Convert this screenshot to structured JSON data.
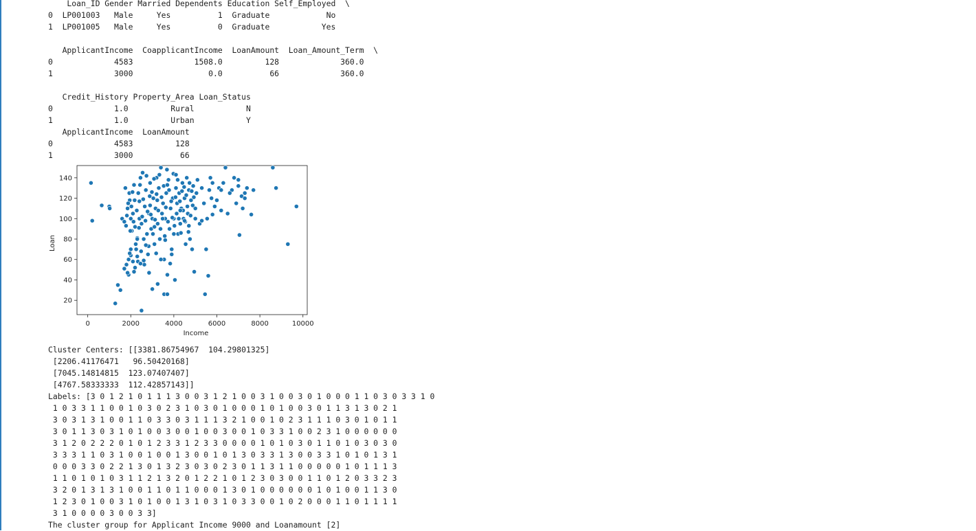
{
  "output": {
    "df_head_text": "    Loan_ID Gender Married Dependents Education Self_Employed  \\\n0  LP001003   Male     Yes          1  Graduate            No\n1  LP001005   Male     Yes          0  Graduate           Yes\n\n   ApplicantIncome  CoapplicantIncome  LoanAmount  Loan_Amount_Term  \\\n0             4583             1508.0         128             360.0\n1             3000                0.0          66             360.0\n\n   Credit_History Property_Area Loan_Status\n0             1.0         Rural           N\n1             1.0         Urban           Y\n   ApplicantIncome  LoanAmount\n0             4583         128\n1             3000          66",
    "cluster_text": "Cluster Centers: [[3381.86754967  104.29801325]\n [2206.41176471   96.50420168]\n [7045.14814815  123.07407407]\n [4767.58333333  112.42857143]]\nLabels: [3 0 1 2 1 0 1 1 1 3 0 0 3 1 2 1 0 0 3 1 0 0 3 0 1 0 0 0 1 1 0 3 0 3 3 1 0\n 1 0 3 3 1 1 0 0 1 0 3 0 2 3 1 0 3 0 1 0 0 0 1 0 1 0 0 3 0 1 1 3 1 3 0 2 1\n 3 0 3 1 3 1 0 0 1 1 0 3 3 0 3 1 1 1 3 2 1 0 0 1 0 2 3 1 1 1 0 3 0 1 0 1 1\n 3 0 1 1 3 0 3 1 0 1 0 0 3 0 0 1 0 0 3 0 0 1 0 3 3 1 0 0 2 3 1 0 0 0 0 0 0\n 3 1 2 0 2 2 2 0 1 0 1 2 3 3 1 2 3 3 0 0 0 0 1 0 1 0 3 0 1 1 0 1 0 3 0 3 0\n 3 3 3 1 1 0 3 1 0 0 1 0 0 1 3 0 0 1 0 1 3 0 3 3 1 3 0 0 3 3 1 0 1 0 1 3 1\n 0 0 0 3 3 0 2 2 1 3 0 1 3 2 3 0 3 0 2 3 0 1 1 3 1 1 0 0 0 0 0 1 0 1 1 1 3\n 1 1 0 1 0 1 0 3 1 1 2 1 3 2 0 1 2 2 1 0 1 2 3 0 3 0 0 1 1 0 1 2 0 3 3 2 3\n 3 2 0 1 3 1 3 1 0 0 1 1 0 1 1 0 0 0 1 3 0 1 0 0 0 0 0 0 1 0 1 0 0 1 1 3 0\n 1 2 3 0 1 0 0 3 1 0 1 0 0 1 3 1 0 3 1 0 3 3 0 0 1 0 2 0 0 0 1 1 0 1 1 1 1\n 3 1 0 0 0 0 3 0 0 3 3]\nThe cluster group for Applicant Income 9000 and Loanamount [2]"
  },
  "colors": {
    "point": "#1f77b4",
    "sidebar_accent": "#2f7ebd"
  },
  "chart_data": {
    "type": "scatter",
    "title": "",
    "xlabel": "Income",
    "ylabel": "Loan",
    "xlim": [
      -500,
      10200
    ],
    "ylim": [
      6,
      152
    ],
    "xticks": [
      0,
      2000,
      4000,
      6000,
      8000,
      10000
    ],
    "yticks": [
      20,
      40,
      60,
      80,
      100,
      120,
      140
    ],
    "xtick_labels": [
      "0",
      "2000",
      "4000",
      "6000",
      "8000",
      "10000"
    ],
    "ytick_labels": [
      "20",
      "40",
      "60",
      "80",
      "100",
      "120",
      "140"
    ],
    "grid": false,
    "points": [
      [
        150,
        135
      ],
      [
        210,
        98
      ],
      [
        650,
        113
      ],
      [
        1000,
        112
      ],
      [
        1020,
        110
      ],
      [
        1280,
        17
      ],
      [
        1400,
        35
      ],
      [
        1520,
        30
      ],
      [
        1600,
        100
      ],
      [
        1700,
        97
      ],
      [
        1750,
        130
      ],
      [
        1800,
        55
      ],
      [
        1850,
        110
      ],
      [
        1900,
        45
      ],
      [
        1950,
        118
      ],
      [
        2000,
        100
      ],
      [
        2100,
        105
      ],
      [
        2050,
        88
      ],
      [
        2150,
        133
      ],
      [
        2200,
        92
      ],
      [
        2250,
        70
      ],
      [
        2300,
        63
      ],
      [
        2350,
        125
      ],
      [
        2400,
        100
      ],
      [
        2450,
        140
      ],
      [
        2500,
        95
      ],
      [
        2550,
        145
      ],
      [
        2600,
        80
      ],
      [
        2650,
        112
      ],
      [
        2700,
        128
      ],
      [
        2750,
        85
      ],
      [
        2800,
        65
      ],
      [
        2850,
        105
      ],
      [
        2900,
        135
      ],
      [
        2950,
        90
      ],
      [
        3000,
        100
      ],
      [
        3050,
        120
      ],
      [
        3100,
        75
      ],
      [
        3150,
        110
      ],
      [
        3200,
        140
      ],
      [
        3250,
        95
      ],
      [
        3300,
        130
      ],
      [
        3350,
        80
      ],
      [
        3400,
        150
      ],
      [
        3450,
        105
      ],
      [
        3500,
        115
      ],
      [
        3550,
        60
      ],
      [
        3600,
        100
      ],
      [
        3650,
        125
      ],
      [
        3700,
        45
      ],
      [
        3750,
        138
      ],
      [
        3800,
        90
      ],
      [
        3850,
        110
      ],
      [
        3900,
        70
      ],
      [
        3950,
        120
      ],
      [
        4000,
        100
      ],
      [
        4050,
        40
      ],
      [
        4100,
        130
      ],
      [
        4150,
        115
      ],
      [
        4200,
        85
      ],
      [
        4250,
        125
      ],
      [
        4300,
        95
      ],
      [
        4350,
        110
      ],
      [
        4400,
        135
      ],
      [
        4450,
        100
      ],
      [
        4500,
        120
      ],
      [
        4550,
        75
      ],
      [
        4600,
        140
      ],
      [
        4650,
        105
      ],
      [
        4700,
        128
      ],
      [
        4750,
        80
      ],
      [
        4800,
        118
      ],
      [
        4850,
        70
      ],
      [
        4900,
        132
      ],
      [
        4950,
        48
      ],
      [
        5000,
        110
      ],
      [
        5050,
        125
      ],
      [
        5100,
        138
      ],
      [
        5200,
        95
      ],
      [
        5300,
        130
      ],
      [
        5400,
        115
      ],
      [
        5450,
        26
      ],
      [
        5500,
        70
      ],
      [
        5550,
        100
      ],
      [
        5600,
        44
      ],
      [
        5650,
        128
      ],
      [
        5700,
        140
      ],
      [
        5750,
        120
      ],
      [
        5800,
        135
      ],
      [
        5900,
        112
      ],
      [
        6000,
        118
      ],
      [
        6100,
        130
      ],
      [
        6200,
        108
      ],
      [
        6300,
        135
      ],
      [
        6400,
        150
      ],
      [
        6500,
        105
      ],
      [
        6700,
        128
      ],
      [
        6800,
        140
      ],
      [
        6900,
        115
      ],
      [
        7000,
        138
      ],
      [
        7050,
        84
      ],
      [
        7150,
        122
      ],
      [
        7200,
        110
      ],
      [
        7300,
        120
      ],
      [
        7400,
        130
      ],
      [
        7600,
        104
      ],
      [
        7700,
        128
      ],
      [
        8600,
        150
      ],
      [
        8750,
        130
      ],
      [
        9300,
        75
      ],
      [
        9700,
        112
      ],
      [
        1780,
        93
      ],
      [
        1820,
        103
      ],
      [
        1880,
        115
      ],
      [
        1930,
        125
      ],
      [
        1980,
        88
      ],
      [
        2030,
        112
      ],
      [
        2080,
        126
      ],
      [
        2130,
        97
      ],
      [
        2180,
        118
      ],
      [
        2230,
        75
      ],
      [
        2280,
        108
      ],
      [
        2330,
        58
      ],
      [
        2380,
        91
      ],
      [
        2430,
        133
      ],
      [
        2480,
        68
      ],
      [
        2530,
        102
      ],
      [
        2580,
        119
      ],
      [
        2630,
        55
      ],
      [
        2680,
        98
      ],
      [
        2730,
        142
      ],
      [
        2780,
        107
      ],
      [
        2830,
        73
      ],
      [
        2880,
        122
      ],
      [
        2930,
        104
      ],
      [
        2980,
        126
      ],
      [
        3030,
        85
      ],
      [
        3080,
        139
      ],
      [
        3130,
        99
      ],
      [
        3180,
        66
      ],
      [
        3230,
        118
      ],
      [
        3280,
        108
      ],
      [
        3330,
        143
      ],
      [
        3380,
        90
      ],
      [
        3430,
        121
      ],
      [
        3480,
        100
      ],
      [
        3530,
        132
      ],
      [
        3580,
        83
      ],
      [
        3630,
        111
      ],
      [
        3680,
        148
      ],
      [
        3730,
        97
      ],
      [
        3780,
        128
      ],
      [
        3830,
        56
      ],
      [
        3880,
        117
      ],
      [
        3930,
        101
      ],
      [
        3980,
        144
      ],
      [
        4030,
        93
      ],
      [
        4080,
        121
      ],
      [
        4130,
        105
      ],
      [
        4180,
        138
      ],
      [
        4230,
        100
      ],
      [
        4280,
        117
      ],
      [
        4330,
        86
      ],
      [
        4380,
        127
      ],
      [
        4430,
        108
      ],
      [
        4480,
        131
      ],
      [
        4530,
        97
      ],
      [
        4580,
        123
      ],
      [
        4630,
        112
      ],
      [
        4680,
        87
      ],
      [
        4730,
        135
      ],
      [
        4780,
        103
      ],
      [
        4830,
        127
      ],
      [
        4880,
        113
      ],
      [
        4930,
        121
      ],
      [
        2500,
        10
      ],
      [
        3550,
        26
      ],
      [
        3700,
        26
      ],
      [
        2850,
        47
      ],
      [
        3250,
        36
      ],
      [
        3000,
        31
      ],
      [
        2200,
        52
      ],
      [
        2600,
        59
      ],
      [
        3900,
        65
      ],
      [
        3400,
        60
      ],
      [
        2300,
        81
      ],
      [
        2700,
        74
      ],
      [
        3100,
        92
      ],
      [
        3600,
        79
      ],
      [
        2000,
        70
      ],
      [
        2100,
        58
      ],
      [
        2400,
        117
      ],
      [
        2900,
        113
      ],
      [
        3200,
        124
      ],
      [
        3700,
        133
      ],
      [
        4100,
        143
      ],
      [
        4500,
        98
      ],
      [
        4700,
        93
      ],
      [
        5000,
        100
      ],
      [
        5300,
        98
      ],
      [
        5800,
        104
      ],
      [
        6200,
        128
      ],
      [
        6600,
        125
      ],
      [
        7000,
        132
      ],
      [
        7300,
        125
      ],
      [
        4000,
        85
      ],
      [
        4300,
        108
      ],
      [
        1700,
        51
      ],
      [
        1850,
        47
      ],
      [
        2000,
        64
      ],
      [
        1950,
        66
      ],
      [
        2150,
        48
      ],
      [
        1900,
        60
      ],
      [
        2300,
        80
      ],
      [
        2450,
        56
      ]
    ]
  }
}
